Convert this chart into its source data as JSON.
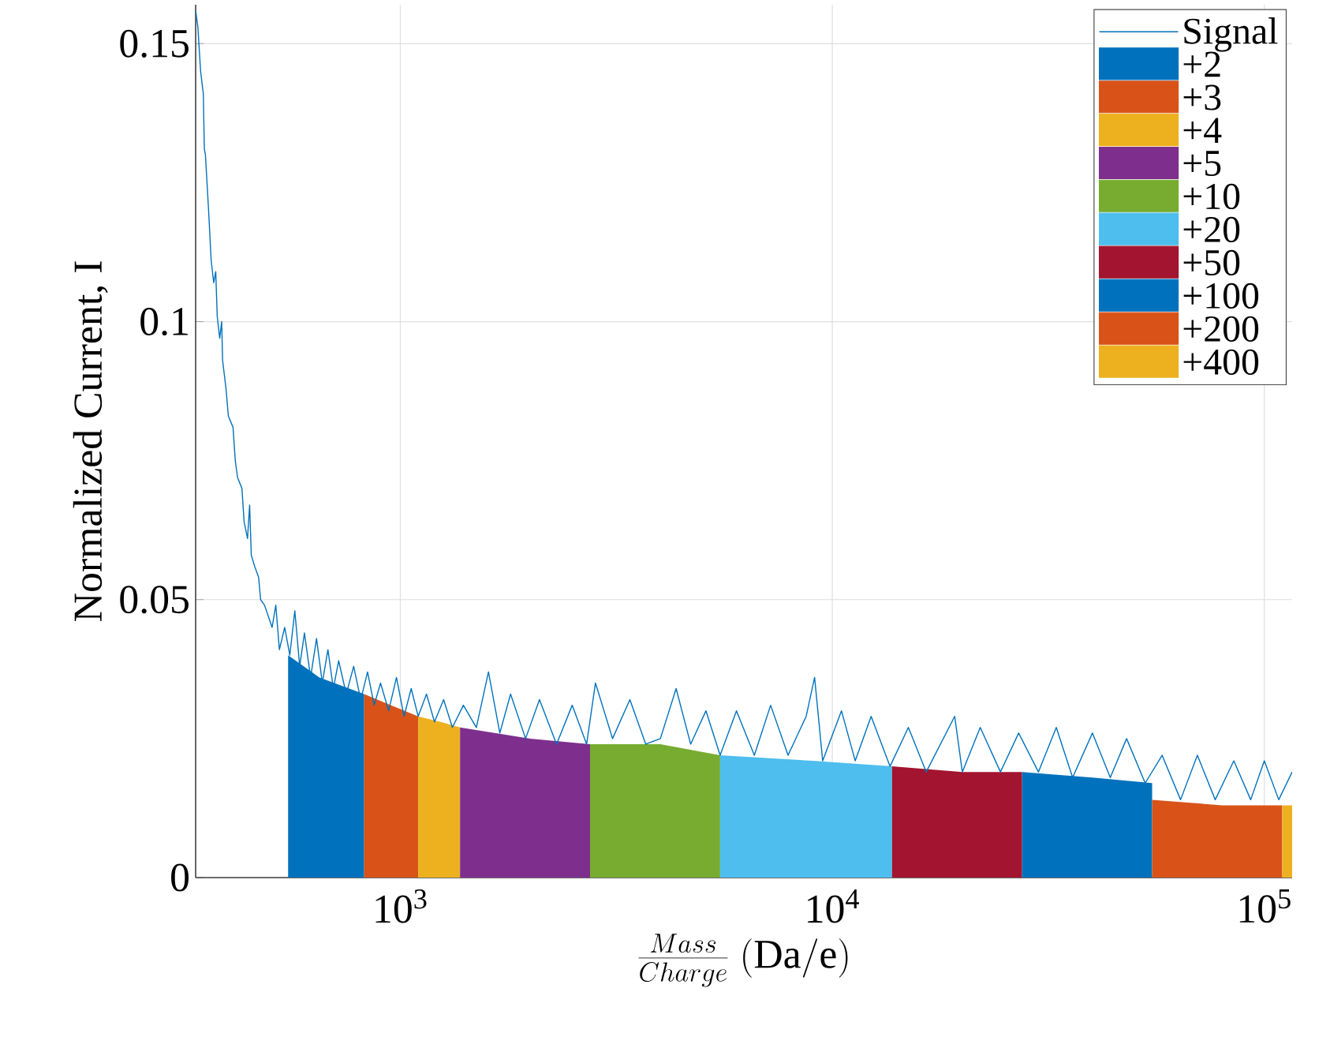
{
  "chart_data": {
    "type": "line",
    "xlabel": "\\frac{Mass}{Charge}\\ \\mathrm{(Da/e)}",
    "ylabel": "Normalized Current, I",
    "log": "x",
    "grid": true,
    "legend": "top right",
    "xlim": [
      336,
      116000
    ],
    "ylim": [
      0,
      0.157
    ],
    "xticks": [
      {
        "value": 1000,
        "label": "10$^{3}$"
      },
      {
        "value": 10000,
        "label": "10$^{4}$"
      },
      {
        "value": 100000,
        "label": "10$^{5}$"
      }
    ],
    "yticks": [
      0,
      0.05,
      0.1,
      0.15
    ],
    "series": [
      {
        "name": "Signal",
        "color": "#0072bd",
        "x": [
          336,
          340,
          345,
          350,
          352,
          354,
          360,
          365,
          370,
          374,
          377,
          382,
          386,
          388,
          395,
          400,
          410,
          415,
          420,
          430,
          435,
          443,
          448,
          452,
          460,
          470,
          475,
          485,
          495,
          505,
          515,
          525,
          540,
          555,
          570,
          585,
          600,
          620,
          640,
          660,
          680,
          700,
          720,
          750,
          780,
          810,
          840,
          870,
          900,
          940,
          980,
          1020,
          1060,
          1100,
          1150,
          1200,
          1260,
          1320,
          1400,
          1500,
          1600,
          1700,
          1800,
          1950,
          2100,
          2300,
          2500,
          2700,
          2830,
          3100,
          3400,
          3700,
          4000,
          4350,
          4700,
          5100,
          5500,
          6000,
          6600,
          7200,
          7900,
          8700,
          9100,
          9500,
          10500,
          11300,
          12300,
          13600,
          15000,
          16500,
          19200,
          20000,
          22000,
          24500,
          27000,
          30000,
          33000,
          36000,
          40000,
          44000,
          48000,
          53000,
          58000,
          64000,
          70000,
          77000,
          85000,
          93000,
          100000,
          108000,
          116000
        ],
        "values": [
          0.156,
          0.153,
          0.145,
          0.141,
          0.131,
          0.13,
          0.12,
          0.111,
          0.107,
          0.109,
          0.101,
          0.097,
          0.1,
          0.093,
          0.088,
          0.083,
          0.081,
          0.075,
          0.072,
          0.07,
          0.064,
          0.061,
          0.067,
          0.058,
          0.056,
          0.054,
          0.05,
          0.049,
          0.047,
          0.045,
          0.049,
          0.041,
          0.045,
          0.04,
          0.048,
          0.038,
          0.044,
          0.036,
          0.043,
          0.035,
          0.041,
          0.034,
          0.039,
          0.033,
          0.038,
          0.032,
          0.037,
          0.031,
          0.035,
          0.03,
          0.036,
          0.029,
          0.034,
          0.029,
          0.033,
          0.028,
          0.032,
          0.027,
          0.031,
          0.027,
          0.037,
          0.026,
          0.033,
          0.025,
          0.032,
          0.024,
          0.031,
          0.024,
          0.035,
          0.025,
          0.032,
          0.024,
          0.025,
          0.034,
          0.024,
          0.03,
          0.022,
          0.03,
          0.022,
          0.031,
          0.022,
          0.029,
          0.036,
          0.021,
          0.03,
          0.021,
          0.029,
          0.02,
          0.027,
          0.019,
          0.029,
          0.019,
          0.027,
          0.019,
          0.026,
          0.019,
          0.027,
          0.018,
          0.026,
          0.018,
          0.025,
          0.017,
          0.022,
          0.014,
          0.022,
          0.014,
          0.021,
          0.014,
          0.021,
          0.014,
          0.019
        ]
      },
      {
        "name": "+2",
        "type": "area",
        "color": "#0072bd",
        "x": [
          550,
          650,
          825
        ],
        "values": [
          0.04,
          0.036,
          0.033
        ]
      },
      {
        "name": "+3",
        "type": "area",
        "color": "#d95319",
        "x": [
          825,
          950,
          1100
        ],
        "values": [
          0.033,
          0.031,
          0.029
        ]
      },
      {
        "name": "+4",
        "type": "area",
        "color": "#edb120",
        "x": [
          1100,
          1240,
          1375
        ],
        "values": [
          0.029,
          0.028,
          0.027
        ]
      },
      {
        "name": "+5",
        "type": "area",
        "color": "#7e2f8e",
        "x": [
          1375,
          2000,
          2750
        ],
        "values": [
          0.027,
          0.025,
          0.024
        ]
      },
      {
        "name": "+10",
        "type": "area",
        "color": "#77ac30",
        "x": [
          2750,
          4000,
          5500
        ],
        "values": [
          0.024,
          0.024,
          0.022
        ]
      },
      {
        "name": "+20",
        "type": "area",
        "color": "#4dbeee",
        "x": [
          5500,
          9000,
          13750
        ],
        "values": [
          0.022,
          0.021,
          0.02
        ]
      },
      {
        "name": "+50",
        "type": "area",
        "color": "#a2142f",
        "x": [
          13750,
          20000,
          27500
        ],
        "values": [
          0.02,
          0.019,
          0.019
        ]
      },
      {
        "name": "+100",
        "type": "area",
        "color": "#0072bd",
        "x": [
          27500,
          40000,
          55000
        ],
        "values": [
          0.019,
          0.018,
          0.017
        ]
      },
      {
        "name": "+200",
        "type": "area",
        "color": "#d95319",
        "x": [
          55000,
          80000,
          110000
        ],
        "values": [
          0.014,
          0.013,
          0.013
        ]
      },
      {
        "name": "+400",
        "type": "area",
        "color": "#edb120",
        "x": [
          110000,
          116000
        ],
        "values": [
          0.013,
          0.013
        ]
      }
    ]
  }
}
